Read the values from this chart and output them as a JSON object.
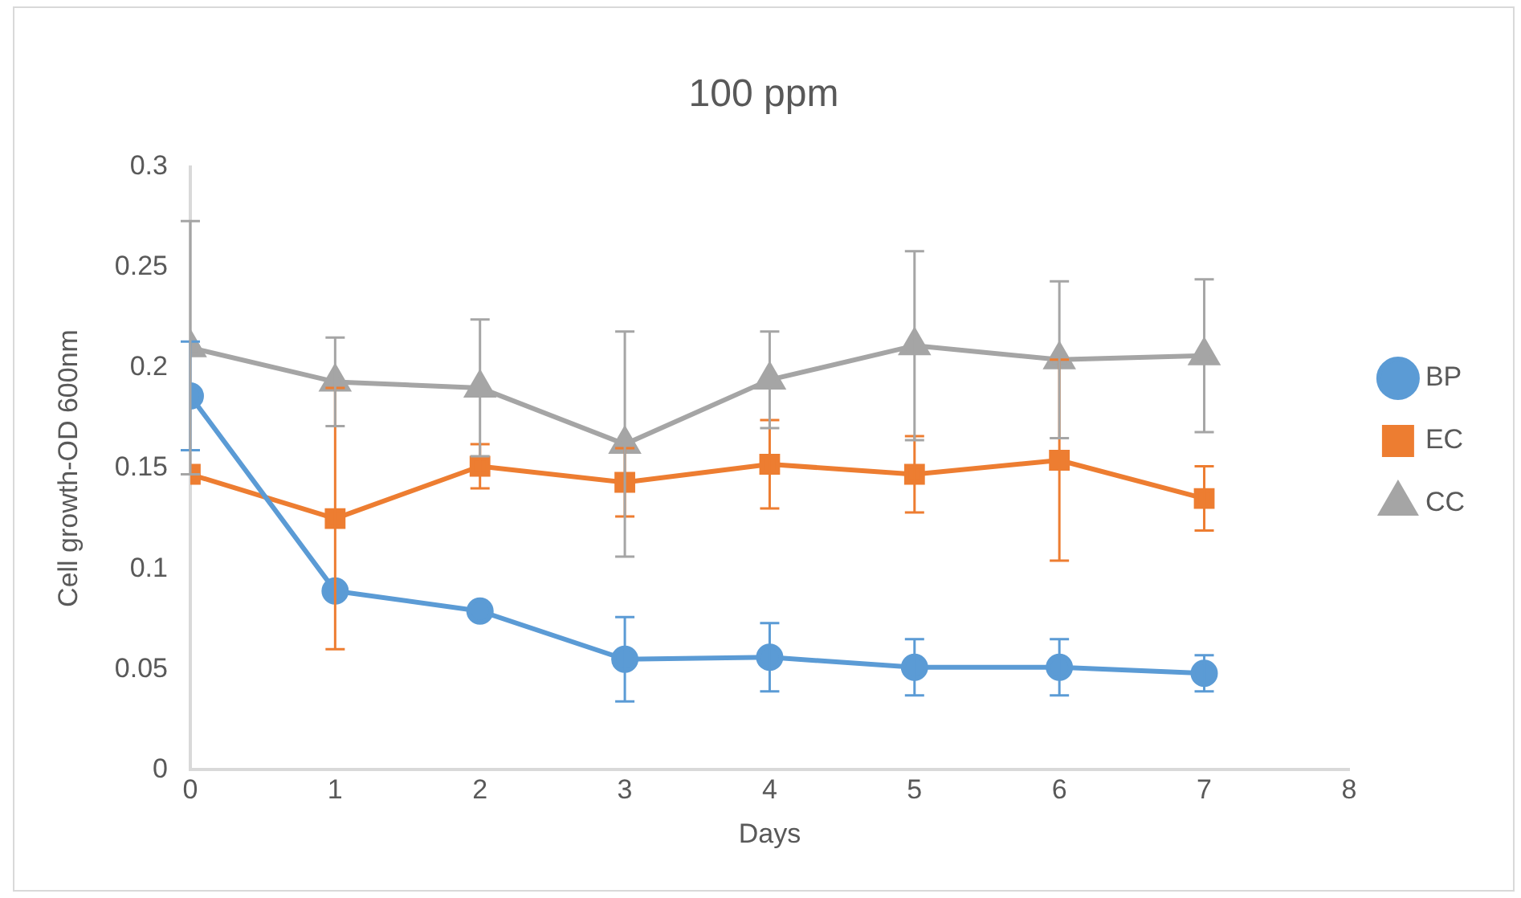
{
  "chart_data": {
    "type": "line",
    "title": "100 ppm",
    "xlabel": "Days",
    "ylabel": "Cell growth-OD 600nm",
    "x": [
      0,
      1,
      2,
      3,
      4,
      5,
      6,
      7
    ],
    "xlim": [
      0,
      8
    ],
    "xticks": [
      0,
      1,
      2,
      3,
      4,
      5,
      6,
      7,
      8
    ],
    "ylim": [
      0,
      0.3
    ],
    "yticks": [
      0,
      0.05,
      0.1,
      0.15,
      0.2,
      0.25,
      0.3
    ],
    "grid": false,
    "legend": "right",
    "series": [
      {
        "name": "BP",
        "color": "#5b9bd5",
        "marker": "circle",
        "values": [
          0.186,
          0.089,
          0.079,
          0.055,
          0.056,
          0.051,
          0.051,
          0.048
        ],
        "errors": [
          0.027,
          null,
          null,
          0.021,
          0.017,
          0.014,
          0.014,
          0.009
        ]
      },
      {
        "name": "EC",
        "color": "#ed7d31",
        "marker": "square",
        "values": [
          0.147,
          0.125,
          0.151,
          0.143,
          0.152,
          0.147,
          0.154,
          0.135
        ],
        "errors": [
          null,
          0.065,
          0.011,
          0.017,
          0.022,
          0.019,
          0.05,
          0.016
        ]
      },
      {
        "name": "CC",
        "color": "#a5a5a5",
        "marker": "triangle",
        "values": [
          0.21,
          0.193,
          0.19,
          0.162,
          0.194,
          0.211,
          0.204,
          0.206
        ],
        "errors": [
          0.063,
          0.022,
          0.034,
          0.056,
          0.024,
          0.047,
          0.039,
          0.038
        ]
      }
    ]
  }
}
